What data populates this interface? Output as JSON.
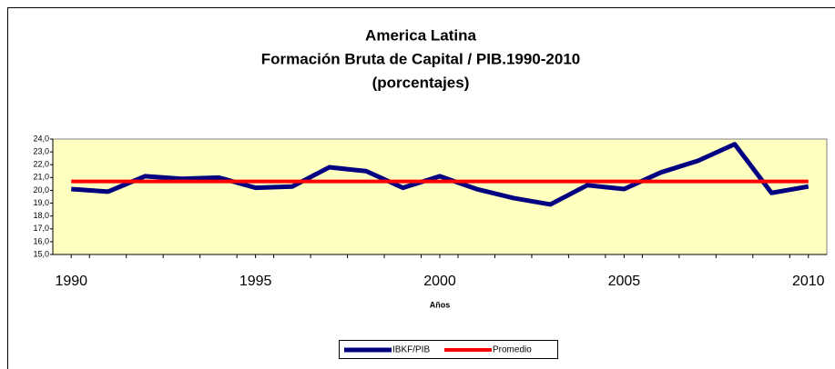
{
  "chart_data": {
    "type": "line",
    "title": [
      "America Latina",
      "Formación Bruta de Capital / PIB.1990-2010",
      "(porcentajes)"
    ],
    "x_label": "Años",
    "x": [
      1990,
      1991,
      1992,
      1993,
      1994,
      1995,
      1996,
      1997,
      1998,
      1999,
      2000,
      2001,
      2002,
      2003,
      2004,
      2005,
      2006,
      2007,
      2008,
      2009,
      2010
    ],
    "series": [
      {
        "name": "IBKF/PIB",
        "color": "#000080",
        "values": [
          20.1,
          19.9,
          21.1,
          20.9,
          21.0,
          20.2,
          20.3,
          21.8,
          21.5,
          20.2,
          21.1,
          20.1,
          19.4,
          18.9,
          20.4,
          20.1,
          21.4,
          22.3,
          23.6,
          19.8,
          20.3
        ]
      },
      {
        "name": "Promedio",
        "color": "#ff0000",
        "values": [
          20.7,
          20.7,
          20.7,
          20.7,
          20.7,
          20.7,
          20.7,
          20.7,
          20.7,
          20.7,
          20.7,
          20.7,
          20.7,
          20.7,
          20.7,
          20.7,
          20.7,
          20.7,
          20.7,
          20.7,
          20.7
        ]
      }
    ],
    "xlim": [
      1989.5,
      2010.5
    ],
    "xticks": [
      1990,
      1995,
      2000,
      2005,
      2010
    ],
    "ylim": [
      15,
      24
    ],
    "yticks": [
      {
        "value": 15,
        "label": "15,0"
      },
      {
        "value": 16,
        "label": "16,0"
      },
      {
        "value": 17,
        "label": "17,0"
      },
      {
        "value": 18,
        "label": "18,0"
      },
      {
        "value": 19,
        "label": "19,0"
      },
      {
        "value": 20,
        "label": "20,0"
      },
      {
        "value": 21,
        "label": "21,0"
      },
      {
        "value": 22,
        "label": "22,0"
      },
      {
        "value": 23,
        "label": "23,0"
      },
      {
        "value": 24,
        "label": "24,0"
      }
    ],
    "grid": false,
    "plot_background": "#ffffc0",
    "legend": "bottom"
  }
}
